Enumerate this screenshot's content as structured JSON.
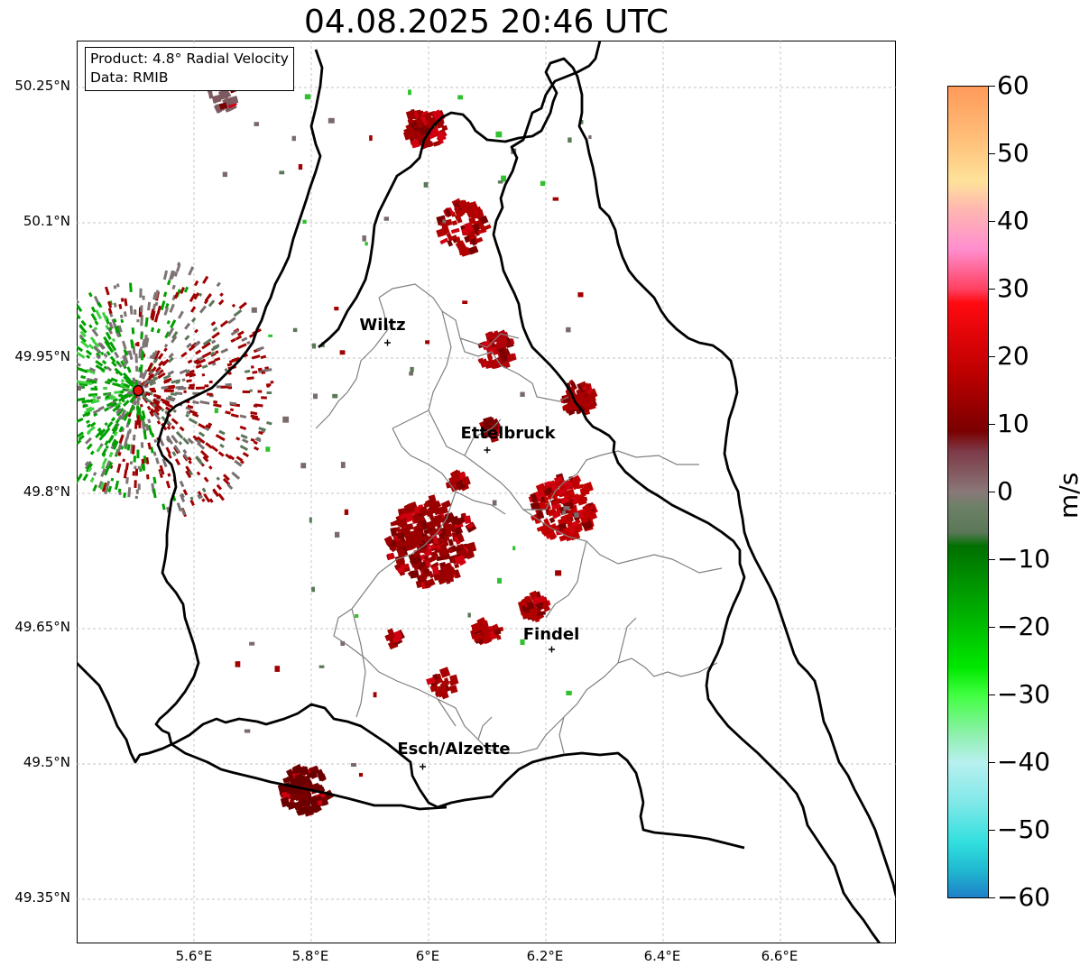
{
  "title": "04.08.2025 20:46 UTC",
  "info_box": {
    "product": "Product: 4.8° Radial Velocity",
    "data_source": "Data: RMIB"
  },
  "map": {
    "lat_labels": [
      "50.25°N",
      "50.1°N",
      "49.95°N",
      "49.8°N",
      "49.65°N",
      "49.5°N",
      "49.35°N"
    ],
    "lon_labels": [
      "5.6°E",
      "5.8°E",
      "6°E",
      "6.2°E",
      "6.4°E",
      "6.6°E"
    ],
    "cities": [
      {
        "name": "Wiltz",
        "lon": 5.93,
        "lat": 49.967
      },
      {
        "name": "Ettelbruck",
        "lon": 6.1,
        "lat": 49.848
      },
      {
        "name": "Findel",
        "lon": 6.21,
        "lat": 49.627
      },
      {
        "name": "Esch/Alzette",
        "lon": 5.99,
        "lat": 49.497
      }
    ],
    "radar_site": {
      "lon": 5.505,
      "lat": 49.914
    },
    "extent": {
      "lon_min": 5.4,
      "lon_max": 6.8,
      "lat_min": 49.3,
      "lat_max": 50.3
    }
  },
  "colorbar": {
    "label": "m/s",
    "ticks": [
      "60",
      "50",
      "40",
      "30",
      "20",
      "10",
      "0",
      "−10",
      "−20",
      "−30",
      "−40",
      "−50",
      "−60"
    ],
    "range": [
      -60,
      60
    ],
    "stops": [
      {
        "v": 60,
        "c": "#ff9a5a"
      },
      {
        "v": 52,
        "c": "#ffc07a"
      },
      {
        "v": 46,
        "c": "#ffe29a"
      },
      {
        "v": 42,
        "c": "#ffb8b0"
      },
      {
        "v": 36,
        "c": "#ff8fcf"
      },
      {
        "v": 30,
        "c": "#ff4060"
      },
      {
        "v": 28,
        "c": "#ff0a10"
      },
      {
        "v": 18,
        "c": "#c00000"
      },
      {
        "v": 9,
        "c": "#7a0000"
      },
      {
        "v": 6,
        "c": "#7d3a48"
      },
      {
        "v": 0,
        "c": "#8a7878"
      },
      {
        "v": -2,
        "c": "#6e8068"
      },
      {
        "v": -6,
        "c": "#5a7858"
      },
      {
        "v": -8,
        "c": "#007000"
      },
      {
        "v": -18,
        "c": "#00b000"
      },
      {
        "v": -26,
        "c": "#00e800"
      },
      {
        "v": -30,
        "c": "#40ff40"
      },
      {
        "v": -36,
        "c": "#90f0b0"
      },
      {
        "v": -40,
        "c": "#b8f0f0"
      },
      {
        "v": -46,
        "c": "#80e8e8"
      },
      {
        "v": -52,
        "c": "#30dede"
      },
      {
        "v": -56,
        "c": "#20b8d0"
      },
      {
        "v": -60,
        "c": "#1e80c8"
      }
    ]
  },
  "colors": {
    "receding": "#a00000",
    "receding_dark": "#6a0000",
    "approaching": "#00a000",
    "near_zero": "#7f7474",
    "border": "#000000",
    "canton_border": "#808080",
    "grid": "#b0b0b0"
  }
}
